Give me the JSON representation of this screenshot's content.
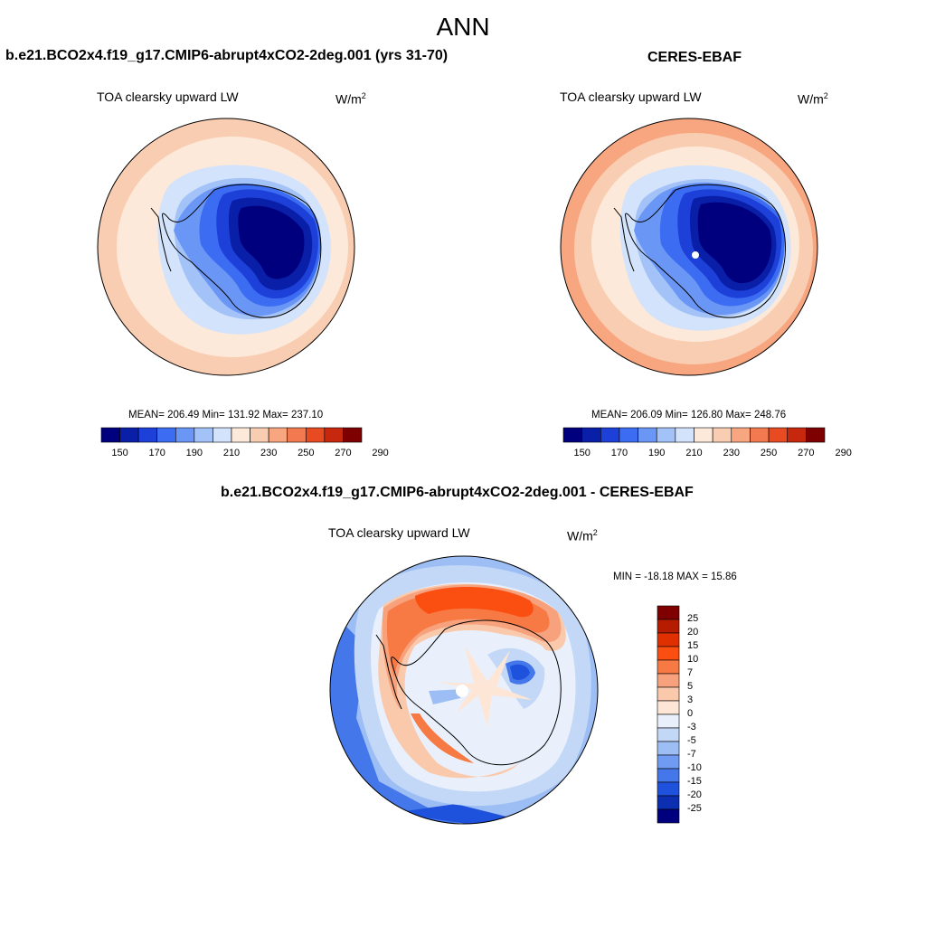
{
  "page": {
    "title": "ANN"
  },
  "panels": [
    {
      "id": "model",
      "case_title": "b.e21.BCO2x4.f19_g17.CMIP6-abrupt4xCO2-2deg.001 (yrs 31-70)",
      "variable": "TOA clearsky upward LW",
      "units": "W/m",
      "units_exponent": "2",
      "stats": "MEAN= 206.49  Min= 131.92  Max= 237.10",
      "colorbar_labels": [
        "150",
        "170",
        "190",
        "210",
        "230",
        "250",
        "270",
        "290"
      ]
    },
    {
      "id": "obs",
      "case_title": "CERES-EBAF",
      "variable": "TOA clearsky upward LW",
      "units": "W/m",
      "units_exponent": "2",
      "stats": "MEAN= 206.09  Min= 126.80  Max= 248.76",
      "colorbar_labels": [
        "150",
        "170",
        "190",
        "210",
        "230",
        "250",
        "270",
        "290"
      ]
    },
    {
      "id": "diff",
      "case_title": "b.e21.BCO2x4.f19_g17.CMIP6-abrupt4xCO2-2deg.001 - CERES-EBAF",
      "variable": "TOA clearsky upward LW",
      "units": "W/m",
      "units_exponent": "2",
      "stats": "MIN = -18.18 MAX =  15.86",
      "colorbar_labels": [
        "25",
        "20",
        "15",
        "10",
        "7",
        "5",
        "3",
        "0",
        "-3",
        "-5",
        "-7",
        "-10",
        "-15",
        "-20",
        "-25"
      ]
    }
  ],
  "colors": {
    "abs_scale": [
      "#00007f",
      "#0a1fa8",
      "#1c40d8",
      "#3b6cf2",
      "#6a96f5",
      "#a3c2f8",
      "#d2e3fb",
      "#fde9d9",
      "#f9cdb2",
      "#f7a680",
      "#f37a50",
      "#e84a22",
      "#c7280d",
      "#7f0000"
    ],
    "diff_scale": [
      "#7f0000",
      "#b51c00",
      "#e03000",
      "#fb4f12",
      "#f77a45",
      "#f7a27c",
      "#fac9ab",
      "#fde6d6",
      "#e9f0fb",
      "#c3d8f6",
      "#9dbef5",
      "#6f9cf2",
      "#4477ea",
      "#1f52dc",
      "#0b2fb0",
      "#00007f"
    ]
  }
}
